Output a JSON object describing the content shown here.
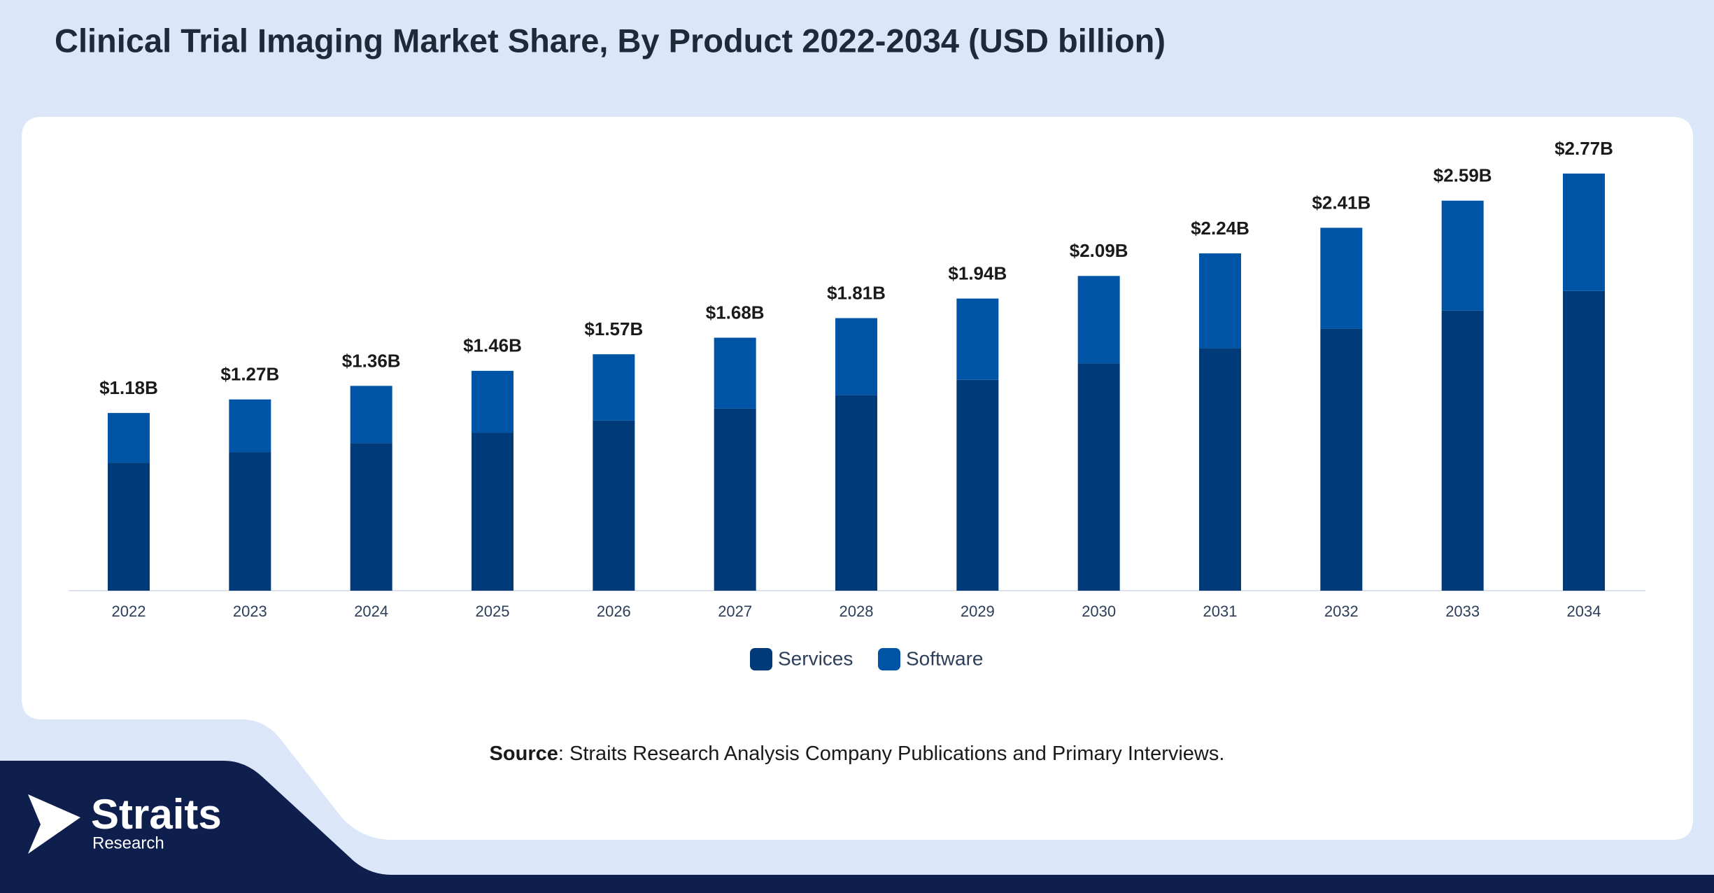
{
  "chart_data": {
    "type": "stacked_bar",
    "title": "Clinical Trial Imaging Market Share, By Product 2022-2034 (USD billion)",
    "categories": [
      "2022",
      "2023",
      "2024",
      "2025",
      "2026",
      "2027",
      "2028",
      "2029",
      "2030",
      "2031",
      "2032",
      "2033",
      "2034"
    ],
    "series": [
      {
        "name": "Services",
        "color": "#003a78",
        "values": [
          0.85,
          0.92,
          0.98,
          1.05,
          1.13,
          1.21,
          1.3,
          1.4,
          1.51,
          1.61,
          1.74,
          1.86,
          1.99
        ]
      },
      {
        "name": "Software",
        "color": "#0054a6",
        "values": [
          0.33,
          0.35,
          0.38,
          0.41,
          0.44,
          0.47,
          0.51,
          0.54,
          0.58,
          0.63,
          0.67,
          0.73,
          0.78
        ]
      }
    ],
    "totals": [
      1.18,
      1.27,
      1.36,
      1.46,
      1.57,
      1.68,
      1.81,
      1.94,
      2.09,
      2.24,
      2.41,
      2.59,
      2.77
    ],
    "total_value_labels": [
      "$1.18B",
      "$1.27B",
      "$1.36B",
      "$1.46B",
      "$1.57B",
      "$1.68B",
      "$1.81B",
      "$1.94B",
      "$2.09B",
      "$2.24B",
      "$2.41B",
      "$2.59B",
      "$2.77B"
    ],
    "legend": "bottom"
  },
  "source": {
    "label": "Source",
    "text": ": Straits Research Analysis Company Publications and Primary Interviews."
  },
  "logo": {
    "name": "Straits",
    "sub": "Research"
  }
}
